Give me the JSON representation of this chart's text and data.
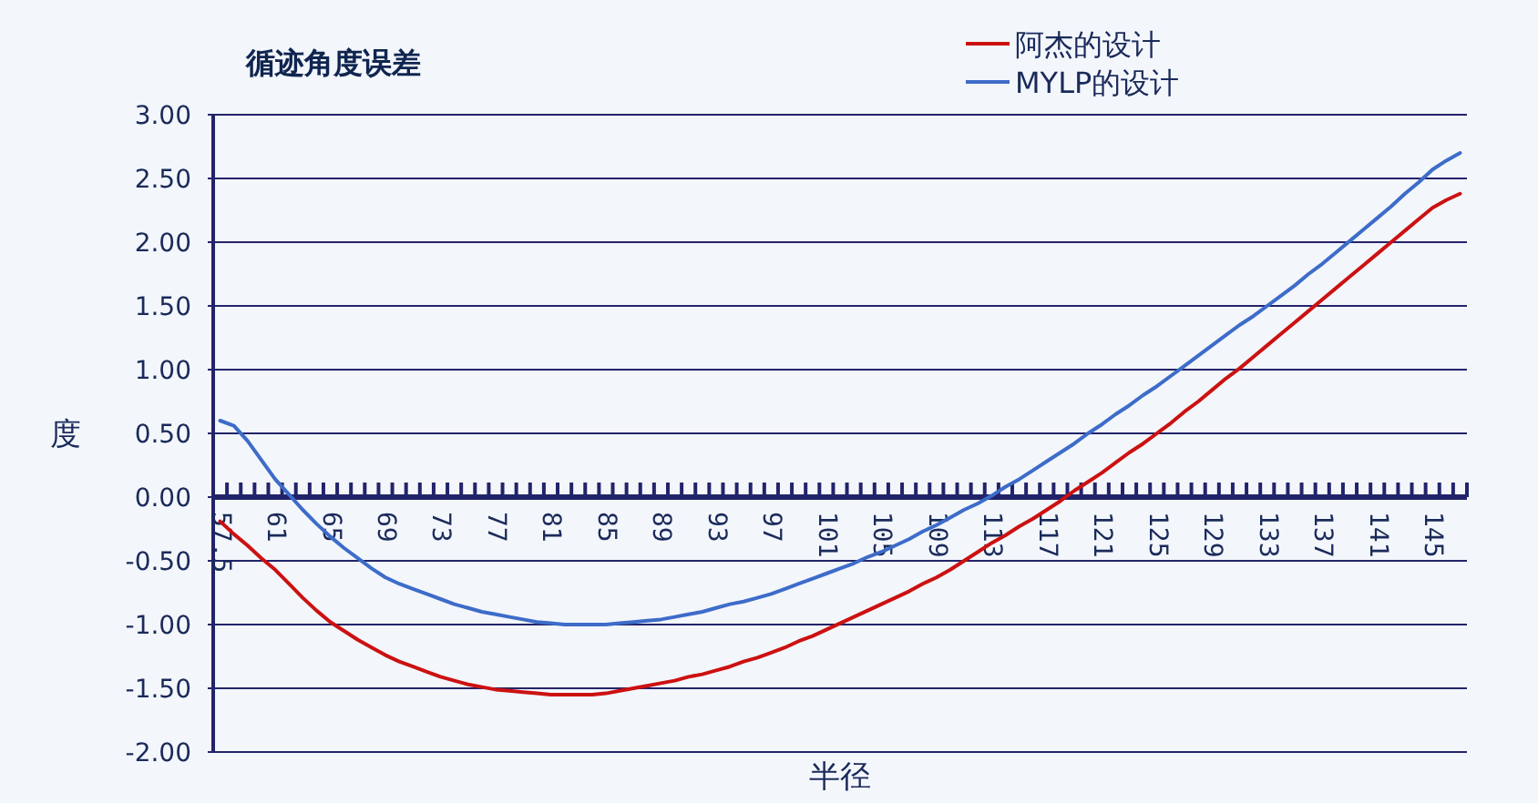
{
  "chart_data": {
    "type": "line",
    "title": "循迹角度误差",
    "xlabel": "半径",
    "ylabel": "度",
    "categories": [
      "57.5",
      null,
      null,
      null,
      "61",
      null,
      null,
      null,
      "65",
      null,
      null,
      null,
      "69",
      null,
      null,
      null,
      "73",
      null,
      null,
      null,
      "77",
      null,
      null,
      null,
      "81",
      null,
      null,
      null,
      "85",
      null,
      null,
      null,
      "89",
      null,
      null,
      null,
      "93",
      null,
      null,
      null,
      "97",
      null,
      null,
      null,
      "101",
      null,
      null,
      null,
      "105",
      null,
      null,
      null,
      "109",
      null,
      null,
      null,
      "113",
      null,
      null,
      null,
      "117",
      null,
      null,
      null,
      "121",
      null,
      null,
      null,
      "125",
      null,
      null,
      null,
      "129",
      null,
      null,
      null,
      "133",
      null,
      null,
      null,
      "137",
      null,
      null,
      null,
      "141",
      null,
      null,
      null,
      "145",
      null,
      null
    ],
    "series": [
      {
        "name": "阿杰的设计",
        "color": "#cc1111",
        "values": [
          -0.19,
          -0.29,
          -0.38,
          -0.48,
          -0.57,
          -0.68,
          -0.79,
          -0.89,
          -0.98,
          -1.05,
          -1.12,
          -1.18,
          -1.24,
          -1.29,
          -1.33,
          -1.37,
          -1.41,
          -1.44,
          -1.47,
          -1.49,
          -1.51,
          -1.52,
          -1.53,
          -1.54,
          -1.55,
          -1.55,
          -1.55,
          -1.55,
          -1.54,
          -1.52,
          -1.5,
          -1.48,
          -1.46,
          -1.44,
          -1.41,
          -1.39,
          -1.36,
          -1.33,
          -1.29,
          -1.26,
          -1.22,
          -1.18,
          -1.13,
          -1.09,
          -1.04,
          -0.99,
          -0.94,
          -0.89,
          -0.84,
          -0.79,
          -0.74,
          -0.68,
          -0.63,
          -0.57,
          -0.5,
          -0.43,
          -0.36,
          -0.3,
          -0.23,
          -0.17,
          -0.1,
          -0.03,
          0.05,
          0.12,
          0.19,
          0.27,
          0.35,
          0.42,
          0.5,
          0.58,
          0.67,
          0.75,
          0.84,
          0.93,
          1.01,
          1.1,
          1.19,
          1.28,
          1.37,
          1.46,
          1.55,
          1.64,
          1.73,
          1.82,
          1.91,
          2.0,
          2.09,
          2.18,
          2.27,
          2.33,
          2.38
        ]
      },
      {
        "name": "MYLP的设计",
        "color": "#3d6cc9",
        "values": [
          0.6,
          0.56,
          0.44,
          0.29,
          0.14,
          0.02,
          -0.1,
          -0.21,
          -0.31,
          -0.4,
          -0.48,
          -0.56,
          -0.63,
          -0.68,
          -0.72,
          -0.76,
          -0.8,
          -0.84,
          -0.87,
          -0.9,
          -0.92,
          -0.94,
          -0.96,
          -0.98,
          -0.99,
          -1.0,
          -1.0,
          -1.0,
          -1.0,
          -0.99,
          -0.98,
          -0.97,
          -0.96,
          -0.94,
          -0.92,
          -0.9,
          -0.87,
          -0.84,
          -0.82,
          -0.79,
          -0.76,
          -0.72,
          -0.68,
          -0.64,
          -0.6,
          -0.56,
          -0.52,
          -0.47,
          -0.43,
          -0.38,
          -0.33,
          -0.27,
          -0.22,
          -0.16,
          -0.1,
          -0.05,
          0.01,
          0.08,
          0.14,
          0.21,
          0.28,
          0.35,
          0.42,
          0.5,
          0.57,
          0.65,
          0.72,
          0.8,
          0.87,
          0.95,
          1.03,
          1.11,
          1.19,
          1.27,
          1.35,
          1.42,
          1.5,
          1.58,
          1.66,
          1.75,
          1.83,
          1.92,
          2.01,
          2.1,
          2.19,
          2.28,
          2.38,
          2.47,
          2.57,
          2.64,
          2.7
        ]
      }
    ],
    "ylim": [
      -2,
      3
    ],
    "yticks": [
      {
        "value": -2,
        "label": "-2.00"
      },
      {
        "value": -1.5,
        "label": "-1.50"
      },
      {
        "value": -1,
        "label": "-1.00"
      },
      {
        "value": -0.5,
        "label": "-0.50"
      },
      {
        "value": 0,
        "label": "0.00"
      },
      {
        "value": 0.5,
        "label": "0.50"
      },
      {
        "value": 1,
        "label": "1.00"
      },
      {
        "value": 1.5,
        "label": "1.50"
      },
      {
        "value": 2,
        "label": "2.00"
      },
      {
        "value": 2.5,
        "label": "2.50"
      },
      {
        "value": 3,
        "label": "3.00"
      }
    ],
    "grid": "y",
    "legend": "top right",
    "line_style": "solid",
    "marker": "none"
  }
}
